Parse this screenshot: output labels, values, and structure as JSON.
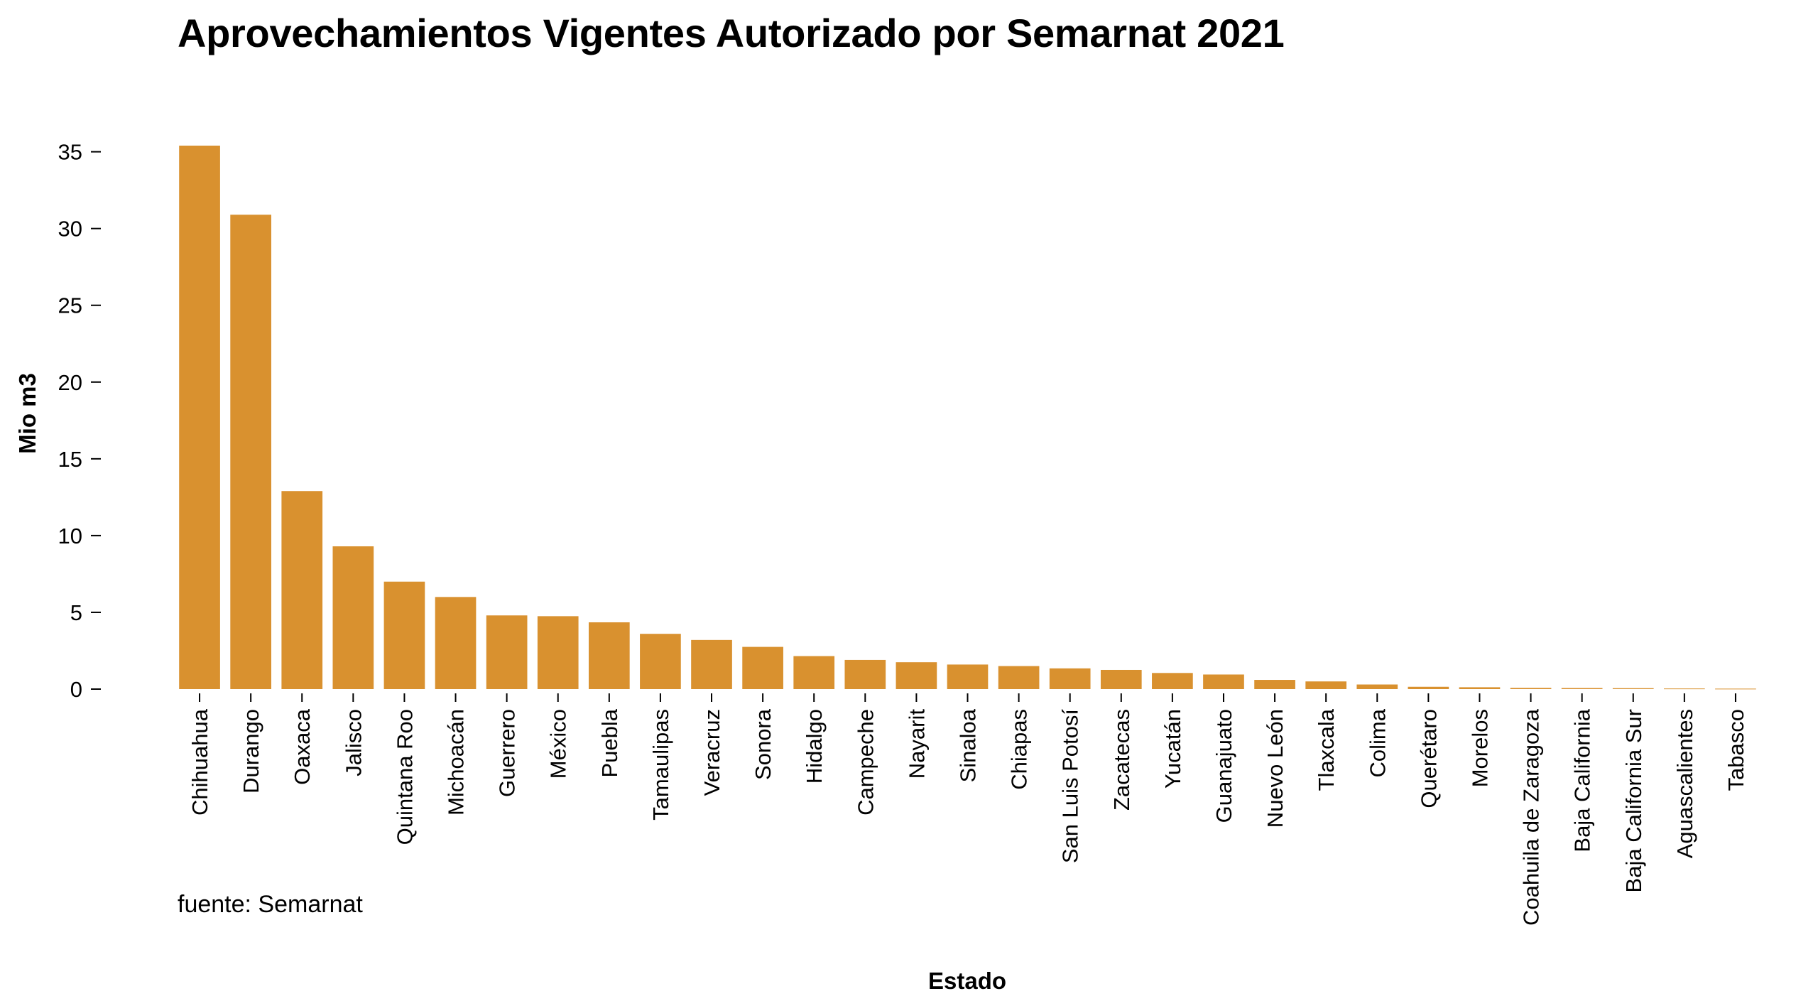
{
  "chart_data": {
    "type": "bar",
    "title": "Aprovechamientos Vigentes Autorizado por Semarnat 2021",
    "xlabel": "Estado",
    "ylabel": "Mio m3",
    "ylim": [
      0,
      36
    ],
    "yticks": [
      0,
      5,
      10,
      15,
      20,
      25,
      30,
      35
    ],
    "grid": false,
    "source": "fuente: Semarnat",
    "bar_color": "#D9912F",
    "categories": [
      "Chihuahua",
      "Durango",
      "Oaxaca",
      "Jalisco",
      "Quintana Roo",
      "Michoacán",
      "Guerrero",
      "México",
      "Puebla",
      "Tamaulipas",
      "Veracruz",
      "Sonora",
      "Hidalgo",
      "Campeche",
      "Nayarit",
      "Sinaloa",
      "Chiapas",
      "San Luis Potosí",
      "Zacatecas",
      "Yucatán",
      "Guanajuato",
      "Nuevo León",
      "Tlaxcala",
      "Colima",
      "Querétaro",
      "Morelos",
      "Coahuila de Zaragoza",
      "Baja California",
      "Baja California Sur",
      "Aguascalientes",
      "Tabasco"
    ],
    "values": [
      35.4,
      30.9,
      12.9,
      9.3,
      7.0,
      6.0,
      4.8,
      4.75,
      4.35,
      3.6,
      3.2,
      2.75,
      2.15,
      1.9,
      1.75,
      1.6,
      1.5,
      1.35,
      1.25,
      1.05,
      0.95,
      0.6,
      0.5,
      0.3,
      0.15,
      0.12,
      0.08,
      0.07,
      0.06,
      0.04,
      0.03
    ]
  }
}
